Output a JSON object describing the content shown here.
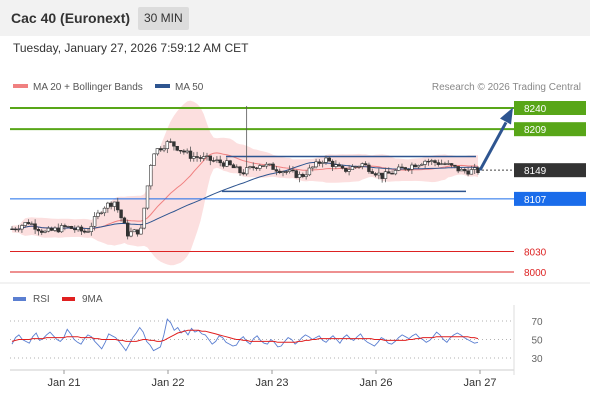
{
  "header": {
    "title": "Cac 40 (Euronext)",
    "timeframe": "30 MIN",
    "datetime": "Tuesday, January 27, 2026 7:59:12 AM CET"
  },
  "legend": {
    "ma20_label": "MA 20 + Bollinger Bands",
    "ma20_color": "#f08080",
    "ma50_label": "MA 50",
    "ma50_color": "#2e5590",
    "copyright": "Research © 2026 Trading Central"
  },
  "rsi_legend": {
    "rsi_label": "RSI",
    "rsi_color": "#5b7fd1",
    "ma9_label": "9MA",
    "ma9_color": "#e02020"
  },
  "chart_data": {
    "type": "candlestick",
    "ylim": [
      7955,
      8262
    ],
    "current_price": 8149,
    "levels": [
      {
        "value": 8240,
        "label": "8240",
        "kind": "resistance",
        "color": "#58a618"
      },
      {
        "value": 8209,
        "label": "8209",
        "kind": "resistance",
        "color": "#58a618"
      },
      {
        "value": 8149,
        "label": "8149",
        "kind": "current",
        "color": "#333333"
      },
      {
        "value": 8107,
        "label": "8107",
        "kind": "pivot",
        "color": "#1a6cea"
      },
      {
        "value": 8030,
        "label": "8030",
        "kind": "support",
        "color": "#dd2222"
      },
      {
        "value": 8000,
        "label": "8000",
        "kind": "support",
        "color": "#dd2222"
      }
    ],
    "channel": {
      "upper": 8169,
      "lower": 8118
    },
    "x_ticks": [
      "Jan 21",
      "Jan 22",
      "Jan 23",
      "Jan 26",
      "Jan 27"
    ],
    "forecast_arrow": {
      "from": 8149,
      "to": 8232
    },
    "rsi": {
      "levels": [
        70,
        50,
        30
      ],
      "ylim": [
        20,
        80
      ],
      "values": [
        45,
        52,
        55,
        50,
        48,
        46,
        53,
        57,
        49,
        51,
        55,
        58,
        54,
        50,
        48,
        52,
        61,
        56,
        50,
        47,
        45,
        51,
        55,
        53,
        48,
        44,
        40,
        47,
        56,
        54,
        52,
        48,
        43,
        38,
        45,
        52,
        57,
        63,
        58,
        48,
        44,
        38,
        40,
        42,
        55,
        72,
        68,
        60,
        63,
        57,
        60,
        55,
        62,
        58,
        60,
        56,
        55,
        50,
        45,
        48,
        54,
        52,
        47,
        45,
        43,
        44,
        50,
        53,
        48,
        45,
        51,
        54,
        49,
        46,
        45,
        50,
        47,
        42,
        43,
        48,
        52,
        50,
        45,
        48,
        52,
        55,
        53,
        50,
        52,
        54,
        49,
        47,
        51,
        54,
        50,
        46,
        52,
        55,
        51,
        49,
        53,
        56,
        50,
        47,
        45,
        43,
        47,
        52,
        50,
        46,
        45,
        48,
        52,
        55,
        53,
        51,
        54,
        56,
        52,
        50,
        47,
        49,
        53,
        58,
        55,
        50,
        47,
        52,
        55,
        57,
        55,
        52,
        50,
        48,
        46,
        47
      ]
    },
    "rsi_ma9": [
      48,
      49,
      50,
      50,
      50,
      50,
      51,
      51,
      51,
      51,
      52,
      52,
      52,
      52,
      52,
      52,
      53,
      53,
      53,
      53,
      52,
      52,
      52,
      52,
      51,
      51,
      50,
      50,
      50,
      50,
      50,
      49,
      49,
      48,
      48,
      48,
      48,
      49,
      50,
      50,
      49,
      49,
      48,
      48,
      49,
      51,
      53,
      55,
      57,
      58,
      59,
      60,
      60,
      60,
      60,
      59,
      59,
      58,
      57,
      56,
      55,
      54,
      53,
      52,
      51,
      50,
      50,
      49,
      49,
      48,
      48,
      48,
      48,
      48,
      48,
      48,
      48,
      47,
      47,
      47,
      47,
      47,
      47,
      48,
      48,
      49,
      49,
      50,
      50,
      51,
      51,
      51,
      51,
      51,
      51,
      51,
      51,
      51,
      51,
      51,
      51,
      51,
      51,
      51,
      51,
      50,
      50,
      50,
      49,
      49,
      49,
      49,
      49,
      49,
      49,
      50,
      50,
      51,
      51,
      52,
      52,
      52,
      52,
      53,
      53,
      53,
      53,
      53,
      53,
      53,
      53,
      53,
      53,
      52,
      52,
      51
    ]
  }
}
